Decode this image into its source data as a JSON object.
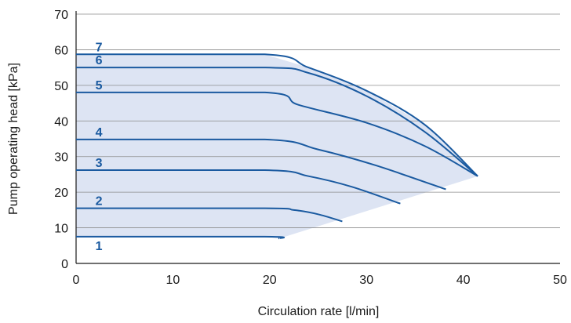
{
  "chart_data": {
    "type": "line",
    "xlabel": "Circulation rate [l/min]",
    "ylabel": "Pump operating head [kPa]",
    "xlim": [
      0,
      50
    ],
    "ylim": [
      0,
      70
    ],
    "x_ticks": [
      "0",
      "10",
      "20",
      "30",
      "40",
      "50"
    ],
    "y_ticks": [
      "0",
      "10",
      "20",
      "30",
      "40",
      "50",
      "60",
      "70"
    ],
    "grid": "horizontal",
    "colors": {
      "line": "#1a5aa0",
      "fill": "#dde4f3",
      "grid": "#8c8c8c",
      "label": "#1a5aa0"
    },
    "series": [
      {
        "label": "1",
        "x": [
          0,
          19.5,
          21.0
        ],
        "y": [
          7.5,
          7.5,
          7.0
        ]
      },
      {
        "label": "2",
        "x": [
          0,
          19.5,
          22.5,
          25.0,
          27.5
        ],
        "y": [
          15.5,
          15.5,
          15.0,
          13.8,
          11.8
        ]
      },
      {
        "label": "3",
        "x": [
          0,
          19.5,
          24.0,
          28.5,
          33.5
        ],
        "y": [
          26.2,
          26.2,
          24.5,
          21.5,
          16.8
        ]
      },
      {
        "label": "4",
        "x": [
          0,
          19.5,
          25.0,
          31.0,
          38.2
        ],
        "y": [
          34.8,
          34.8,
          32.0,
          27.5,
          20.8
        ]
      },
      {
        "label": "5",
        "x": [
          0,
          19.5,
          23.0,
          30.0,
          36.0,
          41.5
        ],
        "y": [
          48.0,
          48.0,
          44.5,
          39.5,
          33.0,
          24.5
        ]
      },
      {
        "label": "6",
        "x": [
          0,
          19.5,
          24.0,
          30.0,
          36.0,
          41.5
        ],
        "y": [
          55.0,
          55.0,
          53.5,
          47.0,
          37.0,
          24.5
        ]
      },
      {
        "label": "7",
        "x": [
          0,
          19.5,
          24.0,
          30.0,
          36.0,
          41.5
        ],
        "y": [
          58.7,
          58.7,
          55.0,
          48.5,
          39.0,
          24.5
        ]
      }
    ]
  }
}
